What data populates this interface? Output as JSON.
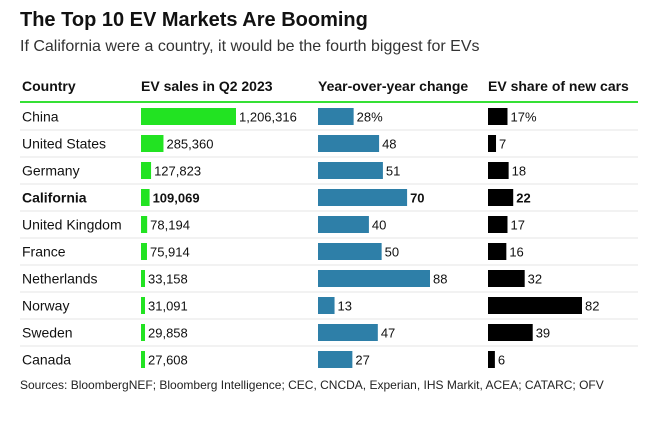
{
  "title": "The Top 10 EV Markets Are Booming",
  "subtitle": "If California were a country, it would be the fourth biggest for EVs",
  "source": "Sources: BloombergNEF; Bloomberg Intelligence; CEC, CNCDA, Experian, IHS Markit, ACEA; CATARC; OFV",
  "chart_data": {
    "type": "table",
    "columns": [
      "Country",
      "EV sales in Q2 2023",
      "Year-over-year change",
      "EV share of new cars"
    ],
    "colors": {
      "sales": "#22e322",
      "change": "#2e7fa8",
      "share": "#000000",
      "rule": "#35e035"
    },
    "highlight_row": "California",
    "rows": [
      {
        "country": "China",
        "sales": 1206316,
        "sales_label": "1,206,316",
        "change": 28,
        "change_label": "28%",
        "share": 17,
        "share_label": "17%"
      },
      {
        "country": "United States",
        "sales": 285360,
        "sales_label": "285,360",
        "change": 48,
        "change_label": "48",
        "share": 7,
        "share_label": "7"
      },
      {
        "country": "Germany",
        "sales": 127823,
        "sales_label": "127,823",
        "change": 51,
        "change_label": "51",
        "share": 18,
        "share_label": "18"
      },
      {
        "country": "California",
        "sales": 109069,
        "sales_label": "109,069",
        "change": 70,
        "change_label": "70",
        "share": 22,
        "share_label": "22"
      },
      {
        "country": "United Kingdom",
        "sales": 78194,
        "sales_label": "78,194",
        "change": 40,
        "change_label": "40",
        "share": 17,
        "share_label": "17"
      },
      {
        "country": "France",
        "sales": 75914,
        "sales_label": "75,914",
        "change": 50,
        "change_label": "50",
        "share": 16,
        "share_label": "16"
      },
      {
        "country": "Netherlands",
        "sales": 33158,
        "sales_label": "33,158",
        "change": 88,
        "change_label": "88",
        "share": 32,
        "share_label": "32"
      },
      {
        "country": "Norway",
        "sales": 31091,
        "sales_label": "31,091",
        "change": 13,
        "change_label": "13",
        "share": 82,
        "share_label": "82"
      },
      {
        "country": "Sweden",
        "sales": 29858,
        "sales_label": "29,858",
        "change": 47,
        "change_label": "47",
        "share": 39,
        "share_label": "39"
      },
      {
        "country": "Canada",
        "sales": 27608,
        "sales_label": "27,608",
        "change": 27,
        "change_label": "27",
        "share": 6,
        "share_label": "6"
      }
    ]
  }
}
